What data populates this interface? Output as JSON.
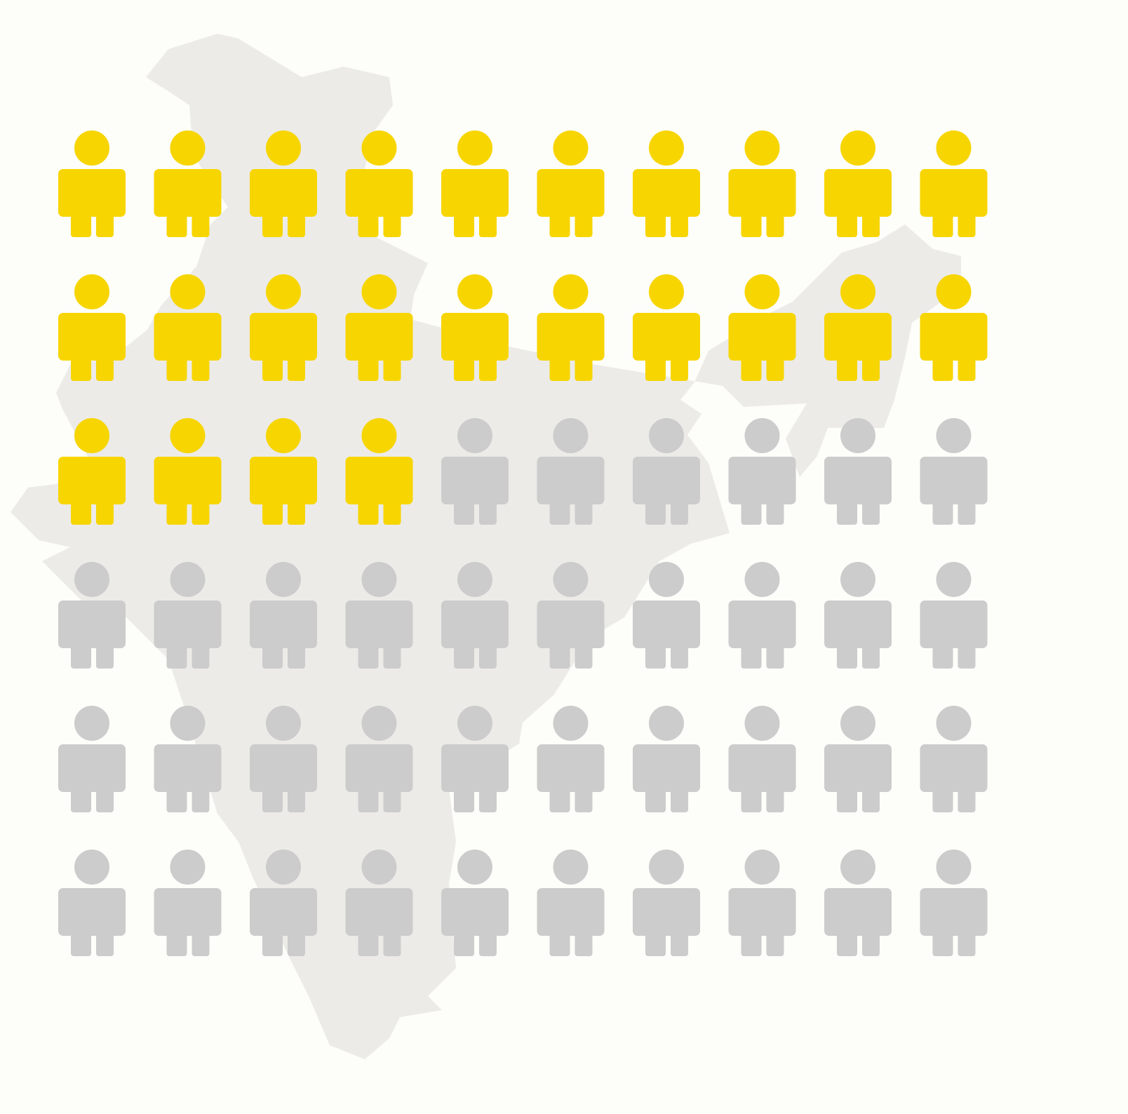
{
  "chart_data": {
    "type": "pictogram",
    "values": [
      24,
      36
    ],
    "colors": [
      "#f7d500",
      "#cccccc"
    ]
  }
}
